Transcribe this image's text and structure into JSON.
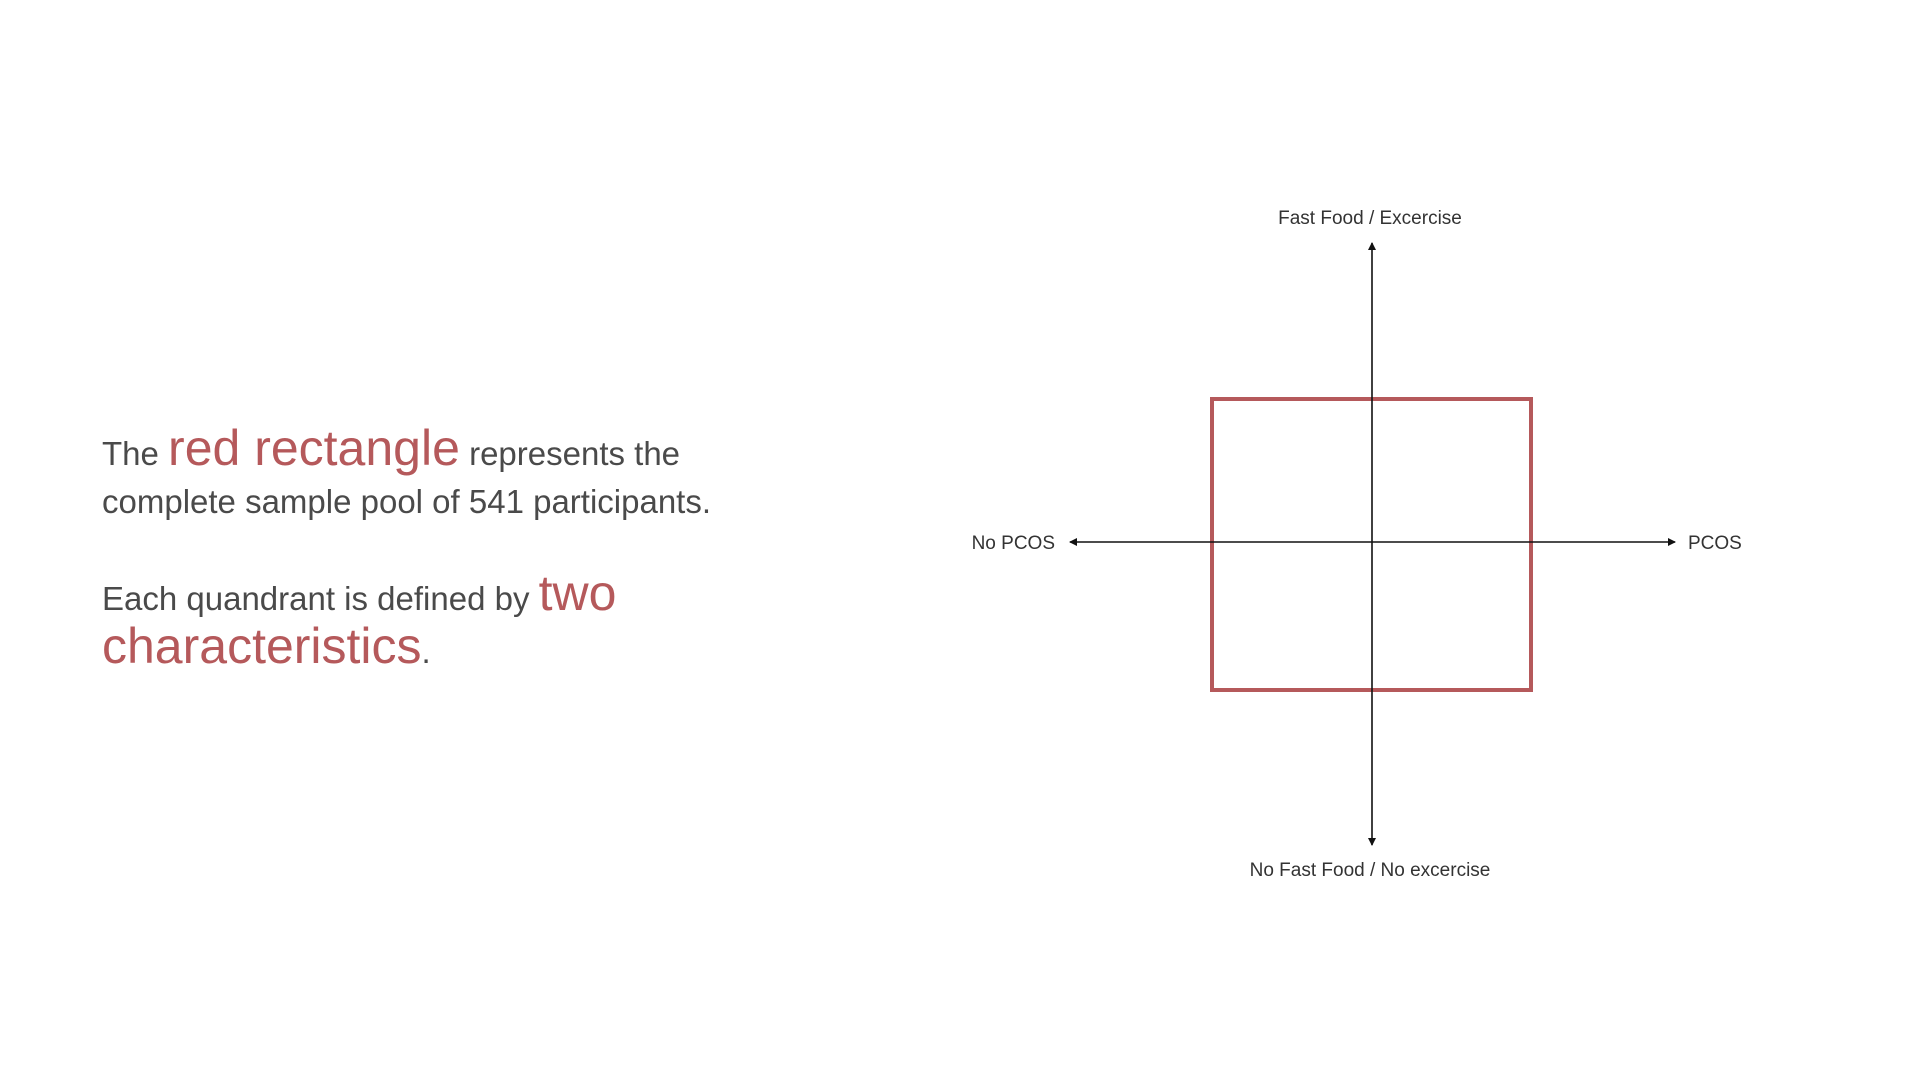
{
  "text": {
    "para1_pre": "The",
    "para1_accent": "red rectangle",
    "para1_post": "represents the complete sample pool of 541 participants.",
    "para2_pre": "Each quandrant is defined by",
    "para2_accent": "two characteristics",
    "para2_post": "."
  },
  "diagram": {
    "top_label": "Fast Food / Excercise",
    "bottom_label": "No Fast Food / No excercise",
    "left_label": "No PCOS",
    "right_label": "PCOS"
  },
  "colors": {
    "accent": "#b5595b",
    "text": "#4a4a4a",
    "axis": "#111111"
  }
}
